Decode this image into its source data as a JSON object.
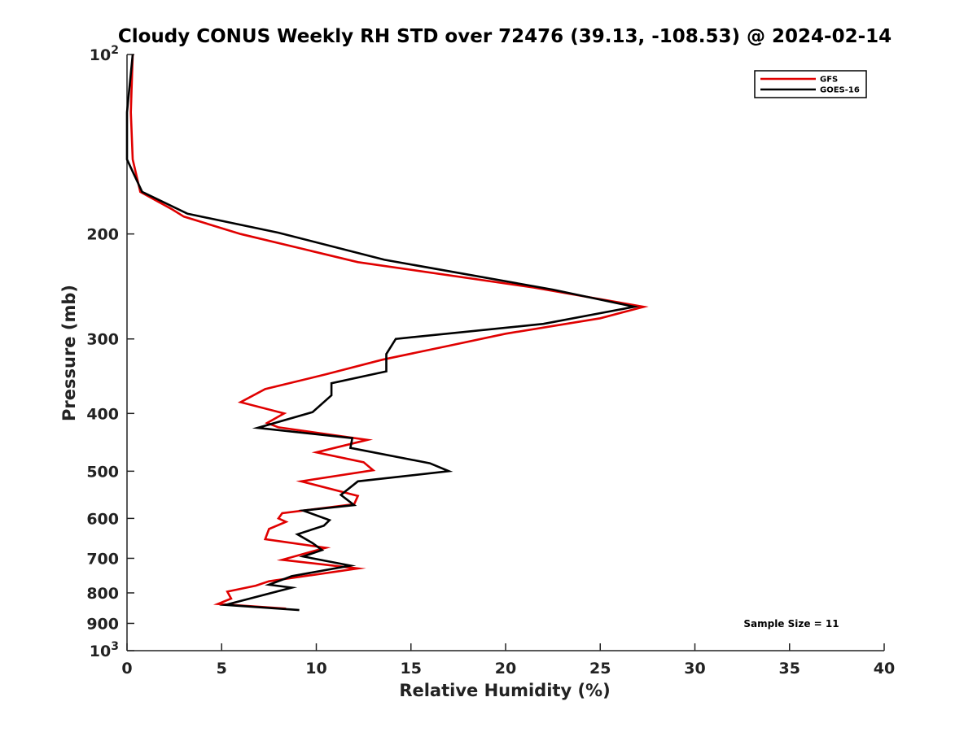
{
  "chart_data": {
    "type": "line",
    "title": "Cloudy CONUS Weekly RH STD over 72476 (39.13, -108.53) @ 2024-02-14",
    "xlabel": "Relative Humidity (%)",
    "ylabel": "Pressure (mb)",
    "xlim": [
      0,
      40
    ],
    "ylim": [
      100,
      1000
    ],
    "y_scale": "log",
    "y_reversed": true,
    "grid": false,
    "legend_position": "top-right",
    "x_ticks": [
      0,
      5,
      10,
      15,
      20,
      25,
      30,
      35,
      40
    ],
    "x_tick_labels": [
      "0",
      "5",
      "10",
      "15",
      "20",
      "25",
      "30",
      "35",
      "40"
    ],
    "y_ticks": [
      100,
      200,
      300,
      400,
      500,
      600,
      700,
      800,
      900,
      1000
    ],
    "y_tick_labels": [
      {
        "base": "10",
        "exp": "2"
      },
      {
        "base": "200",
        "exp": ""
      },
      {
        "base": "300",
        "exp": ""
      },
      {
        "base": "400",
        "exp": ""
      },
      {
        "base": "500",
        "exp": ""
      },
      {
        "base": "600",
        "exp": ""
      },
      {
        "base": "700",
        "exp": ""
      },
      {
        "base": "800",
        "exp": ""
      },
      {
        "base": "900",
        "exp": ""
      },
      {
        "base": "10",
        "exp": "3"
      }
    ],
    "annotation": "Sample Size = 11",
    "series": [
      {
        "name": "GFS",
        "color": "#e00000",
        "points": [
          [
            0.3,
            100
          ],
          [
            0.2,
            125
          ],
          [
            0.3,
            150
          ],
          [
            0.7,
            170
          ],
          [
            2.4,
            182
          ],
          [
            3.0,
            187
          ],
          [
            6.0,
            200
          ],
          [
            12.2,
            223
          ],
          [
            21.5,
            246
          ],
          [
            27.3,
            265
          ],
          [
            25.0,
            277
          ],
          [
            20.0,
            294
          ],
          [
            17.0,
            308
          ],
          [
            13.5,
            325
          ],
          [
            10.5,
            344
          ],
          [
            7.3,
            364
          ],
          [
            6.0,
            383
          ],
          [
            8.3,
            400
          ],
          [
            7.4,
            415
          ],
          [
            8.0,
            422
          ],
          [
            12.7,
            443
          ],
          [
            10.0,
            465
          ],
          [
            12.5,
            483
          ],
          [
            13.0,
            498
          ],
          [
            9.2,
            520
          ],
          [
            12.2,
            550
          ],
          [
            12.0,
            568
          ],
          [
            8.2,
            588
          ],
          [
            8.0,
            600
          ],
          [
            8.4,
            608
          ],
          [
            7.5,
            625
          ],
          [
            7.3,
            650
          ],
          [
            10.5,
            672
          ],
          [
            8.2,
            704
          ],
          [
            12.2,
            728
          ],
          [
            7.5,
            765
          ],
          [
            6.8,
            778
          ],
          [
            5.3,
            796
          ],
          [
            5.5,
            818
          ],
          [
            4.8,
            835
          ],
          [
            8.4,
            850
          ]
        ]
      },
      {
        "name": "GOES-16",
        "color": "#000000",
        "points": [
          [
            0.3,
            100
          ],
          [
            0.0,
            125
          ],
          [
            0.0,
            150
          ],
          [
            0.8,
            170
          ],
          [
            3.2,
            185
          ],
          [
            8.0,
            199
          ],
          [
            13.6,
            221
          ],
          [
            22.5,
            248
          ],
          [
            26.8,
            265
          ],
          [
            22.0,
            283
          ],
          [
            14.2,
            300
          ],
          [
            13.7,
            318
          ],
          [
            13.7,
            340
          ],
          [
            10.8,
            356
          ],
          [
            10.8,
            373
          ],
          [
            9.8,
            398
          ],
          [
            6.9,
            423
          ],
          [
            11.9,
            440
          ],
          [
            11.8,
            457
          ],
          [
            16.0,
            485
          ],
          [
            17.0,
            500
          ],
          [
            12.2,
            520
          ],
          [
            11.3,
            548
          ],
          [
            12.0,
            570
          ],
          [
            9.3,
            582
          ],
          [
            10.7,
            604
          ],
          [
            10.4,
            617
          ],
          [
            9.0,
            638
          ],
          [
            9.8,
            660
          ],
          [
            10.3,
            678
          ],
          [
            9.3,
            695
          ],
          [
            11.8,
            720
          ],
          [
            8.7,
            750
          ],
          [
            7.5,
            775
          ],
          [
            8.7,
            784
          ],
          [
            5.2,
            838
          ],
          [
            9.1,
            855
          ]
        ]
      }
    ]
  }
}
